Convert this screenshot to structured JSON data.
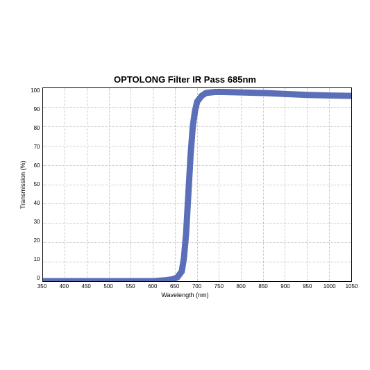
{
  "chart": {
    "type": "line",
    "title": "OPTOLONG Filter IR Pass 685nm",
    "title_fontsize": 13,
    "xlabel": "Wavelength (nm)",
    "ylabel": "Transmission (%)",
    "label_fontsize": 9,
    "tick_fontsize": 8,
    "xlim": [
      350,
      1050
    ],
    "ylim": [
      0,
      100
    ],
    "xticks": [
      350,
      400,
      450,
      500,
      550,
      600,
      650,
      700,
      750,
      800,
      850,
      900,
      950,
      1000,
      1050
    ],
    "yticks": [
      0,
      10,
      20,
      30,
      40,
      50,
      60,
      70,
      80,
      90,
      100
    ],
    "background_color": "#ffffff",
    "grid_color": "#c0c0c0",
    "border_color": "#000000",
    "line_color": "#5b6fb8",
    "line_width": 1.5,
    "data": {
      "x": [
        350,
        400,
        450,
        500,
        550,
        600,
        630,
        645,
        655,
        665,
        670,
        675,
        680,
        685,
        690,
        695,
        700,
        710,
        720,
        740,
        760,
        800,
        850,
        900,
        950,
        1000,
        1050
      ],
      "y": [
        0,
        0,
        0,
        0,
        0,
        0,
        0.5,
        1,
        2,
        5,
        12,
        25,
        45,
        65,
        80,
        88,
        93,
        96,
        97.5,
        98,
        98,
        97.8,
        97.5,
        97,
        96.5,
        96.2,
        96
      ]
    }
  }
}
